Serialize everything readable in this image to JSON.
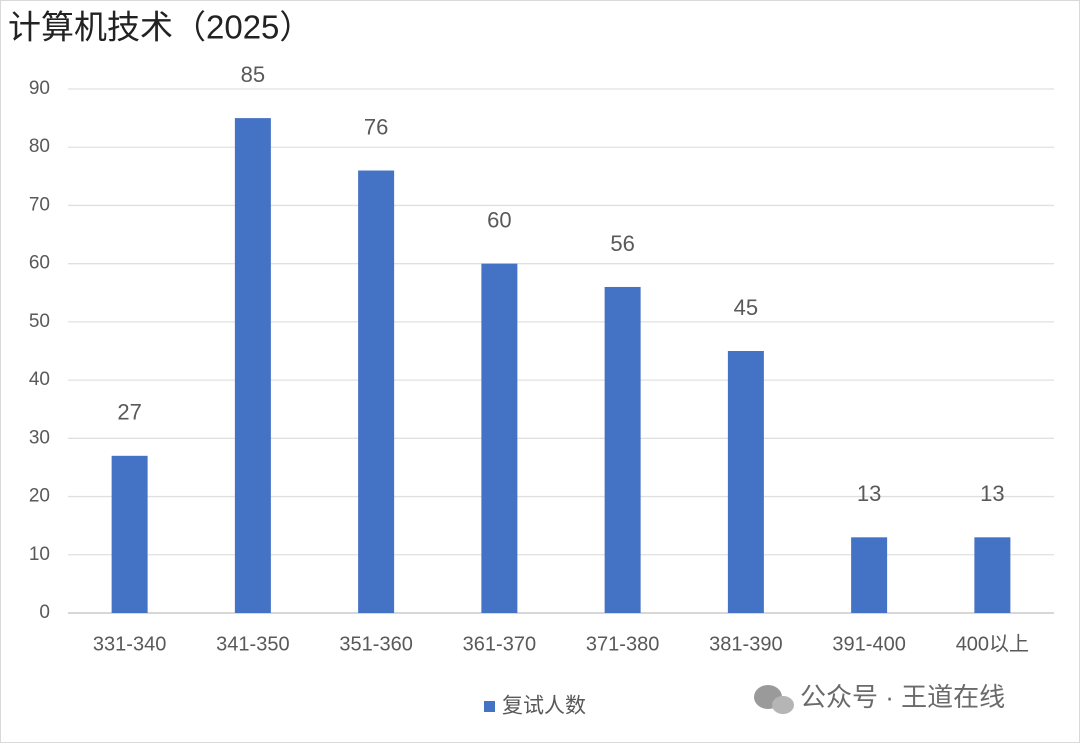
{
  "chart_data": {
    "type": "bar",
    "title": "计算机技术（2025）",
    "categories": [
      "331-340",
      "341-350",
      "351-360",
      "361-370",
      "371-380",
      "381-390",
      "391-400",
      "400以上"
    ],
    "series": [
      {
        "name": "复试人数",
        "color": "#4472c4",
        "values": [
          27,
          85,
          76,
          60,
          56,
          45,
          13,
          13
        ]
      }
    ],
    "ylim": [
      0,
      90
    ],
    "yticks": [
      0,
      10,
      20,
      30,
      40,
      50,
      60,
      70,
      80,
      90
    ],
    "grid": true,
    "legend": "bottom",
    "watermark": "公众号 · 王道在线"
  }
}
